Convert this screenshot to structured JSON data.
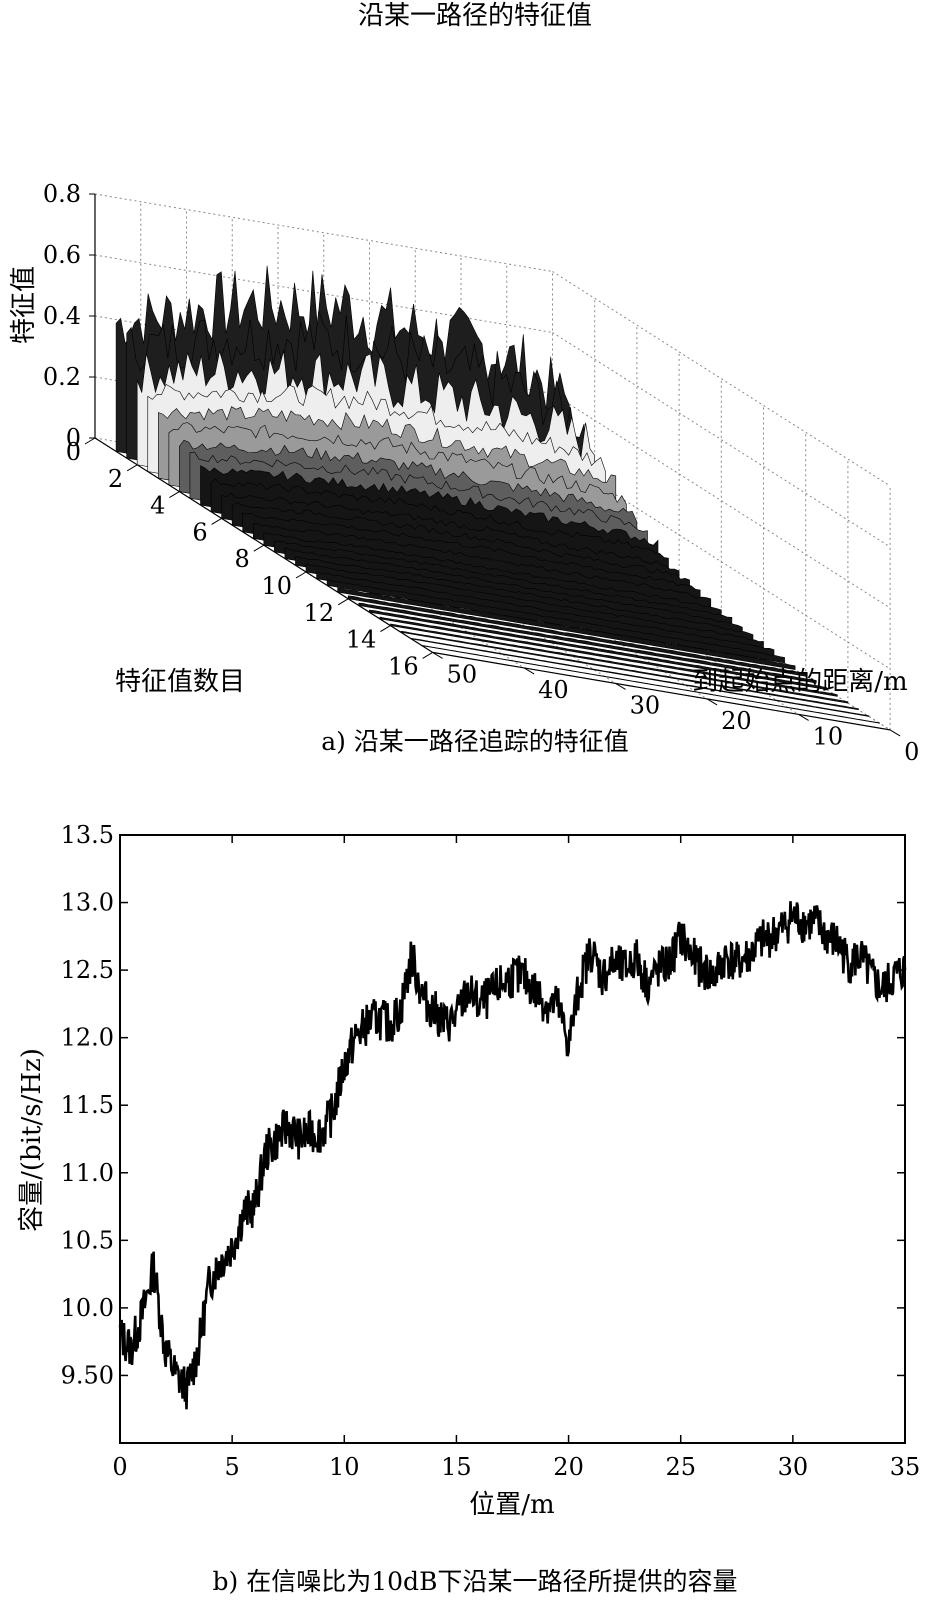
{
  "chart_data": [
    {
      "type": "surface",
      "title": "沿某一路径的特征值",
      "xlabel": "到起始点的距离/m",
      "ylabel": "特征值数目",
      "zlabel": "特征值",
      "x_ticks": [
        "0",
        "10",
        "20",
        "30",
        "40",
        "50"
      ],
      "y_ticks": [
        "0",
        "2",
        "4",
        "6",
        "8",
        "10",
        "12",
        "14",
        "16"
      ],
      "z_ticks": [
        "0",
        "0.2",
        "0.4",
        "0.6",
        "0.8"
      ],
      "xlim": [
        0,
        50
      ],
      "ylim": [
        0,
        16
      ],
      "zlim": [
        0,
        0.8
      ],
      "grid": true,
      "colormap": "gray",
      "caption": "a) 沿某一路径追踪的特征值",
      "distance_x": [
        0,
        5,
        10,
        15,
        20,
        25,
        30,
        35,
        40,
        45,
        50
      ],
      "eigenvalue_profile": [
        {
          "index": 1,
          "values": [
            0.42,
            0.47,
            0.52,
            0.56,
            0.58,
            0.6,
            0.57,
            0.55,
            0.54,
            0.5,
            0.4
          ]
        },
        {
          "index": 2,
          "values": [
            0.3,
            0.33,
            0.36,
            0.38,
            0.4,
            0.41,
            0.4,
            0.39,
            0.38,
            0.36,
            0.32
          ]
        },
        {
          "index": 3,
          "values": [
            0.22,
            0.24,
            0.26,
            0.28,
            0.29,
            0.3,
            0.29,
            0.28,
            0.27,
            0.26,
            0.24
          ]
        },
        {
          "index": 4,
          "values": [
            0.16,
            0.17,
            0.19,
            0.2,
            0.21,
            0.21,
            0.21,
            0.2,
            0.2,
            0.19,
            0.17
          ]
        },
        {
          "index": 6,
          "values": [
            0.08,
            0.09,
            0.1,
            0.1,
            0.11,
            0.11,
            0.11,
            0.1,
            0.1,
            0.1,
            0.09
          ]
        },
        {
          "index": 8,
          "values": [
            0.04,
            0.04,
            0.05,
            0.05,
            0.05,
            0.05,
            0.05,
            0.05,
            0.05,
            0.05,
            0.04
          ]
        },
        {
          "index": 12,
          "values": [
            0.01,
            0.01,
            0.01,
            0.01,
            0.01,
            0.01,
            0.01,
            0.01,
            0.01,
            0.01,
            0.01
          ]
        },
        {
          "index": 16,
          "values": [
            0.0,
            0.0,
            0.0,
            0.0,
            0.0,
            0.0,
            0.0,
            0.0,
            0.0,
            0.0,
            0.0
          ]
        }
      ]
    },
    {
      "type": "line",
      "xlabel": "位置/m",
      "ylabel": "容量/(bit/s/Hz)",
      "x_ticks": [
        "0",
        "5",
        "10",
        "15",
        "20",
        "25",
        "30",
        "35"
      ],
      "y_ticks": [
        "9.50",
        "10.0",
        "10.5",
        "11.0",
        "11.5",
        "12.0",
        "12.5",
        "13.0",
        "13.5"
      ],
      "xlim": [
        0,
        35
      ],
      "ylim": [
        9.0,
        13.5
      ],
      "grid": false,
      "caption": "b) 在信噪比为10dB下沿某一路径所提供的容量",
      "x": [
        0,
        0.5,
        1,
        1.5,
        2,
        2.5,
        3,
        3.5,
        4,
        4.5,
        5,
        5.5,
        6,
        6.5,
        7,
        7.5,
        8,
        8.5,
        9,
        9.5,
        10,
        10.5,
        11,
        11.5,
        12,
        12.5,
        13,
        13.5,
        14,
        14.5,
        15,
        15.5,
        16,
        16.5,
        17,
        17.5,
        18,
        18.5,
        19,
        19.5,
        20,
        20.5,
        21,
        21.5,
        22,
        22.5,
        23,
        23.5,
        24,
        24.5,
        25,
        25.5,
        26,
        26.5,
        27,
        27.5,
        28,
        28.5,
        29,
        29.5,
        30,
        30.5,
        31,
        31.5,
        32,
        32.5,
        33,
        33.5,
        34,
        34.5,
        35
      ],
      "y": [
        9.8,
        9.7,
        9.95,
        10.3,
        9.7,
        9.5,
        9.4,
        9.7,
        10.2,
        10.35,
        10.45,
        10.7,
        10.75,
        11.15,
        11.25,
        11.35,
        11.25,
        11.3,
        11.3,
        11.45,
        11.8,
        12.0,
        12.1,
        12.15,
        12.1,
        12.2,
        12.6,
        12.3,
        12.2,
        12.1,
        12.15,
        12.35,
        12.25,
        12.3,
        12.4,
        12.45,
        12.45,
        12.35,
        12.25,
        12.25,
        11.95,
        12.4,
        12.65,
        12.45,
        12.55,
        12.5,
        12.6,
        12.4,
        12.5,
        12.55,
        12.75,
        12.6,
        12.5,
        12.45,
        12.6,
        12.55,
        12.6,
        12.7,
        12.75,
        12.8,
        12.9,
        12.85,
        12.85,
        12.75,
        12.7,
        12.55,
        12.6,
        12.45,
        12.35,
        12.45,
        12.5
      ]
    }
  ]
}
